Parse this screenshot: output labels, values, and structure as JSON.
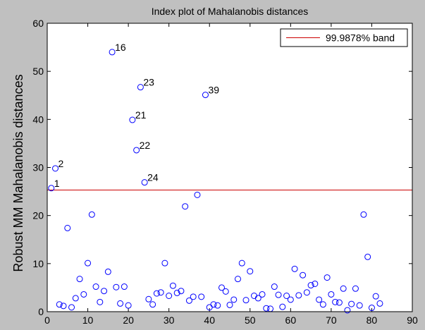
{
  "chart_data": {
    "type": "scatter",
    "title": "Index plot of Mahalanobis distances",
    "xlabel": "",
    "ylabel": "Robust MM Mahalanobis distances",
    "xlim": [
      0,
      90
    ],
    "ylim": [
      0,
      60
    ],
    "xticks": [
      0,
      10,
      20,
      30,
      40,
      50,
      60,
      70,
      80,
      90
    ],
    "yticks": [
      0,
      10,
      20,
      30,
      40,
      50,
      60
    ],
    "grid": false,
    "legend_position": "top-right",
    "colors": {
      "markers": "#0000ff",
      "band": "#cc0000",
      "background": "#c0c0c0",
      "axes": "#ffffff"
    },
    "band": {
      "label": "99.9878% band",
      "y": 25.3
    },
    "points": [
      [
        1,
        25.7
      ],
      [
        2,
        29.8
      ],
      [
        3,
        1.5
      ],
      [
        4,
        1.2
      ],
      [
        5,
        17.4
      ],
      [
        6,
        0.9
      ],
      [
        7,
        2.8
      ],
      [
        8,
        6.8
      ],
      [
        9,
        3.6
      ],
      [
        10,
        10.1
      ],
      [
        11,
        20.2
      ],
      [
        12,
        5.2
      ],
      [
        13,
        2.0
      ],
      [
        14,
        4.3
      ],
      [
        15,
        8.3
      ],
      [
        16,
        54.0
      ],
      [
        17,
        5.1
      ],
      [
        18,
        1.7
      ],
      [
        19,
        5.2
      ],
      [
        20,
        1.3
      ],
      [
        21,
        39.9
      ],
      [
        22,
        33.6
      ],
      [
        23,
        46.7
      ],
      [
        24,
        26.9
      ],
      [
        25,
        2.6
      ],
      [
        26,
        1.5
      ],
      [
        27,
        3.8
      ],
      [
        28,
        4.0
      ],
      [
        29,
        10.1
      ],
      [
        30,
        3.3
      ],
      [
        31,
        5.4
      ],
      [
        32,
        3.9
      ],
      [
        33,
        4.3
      ],
      [
        34,
        21.9
      ],
      [
        35,
        2.3
      ],
      [
        36,
        3.1
      ],
      [
        37,
        24.3
      ],
      [
        38,
        3.1
      ],
      [
        39,
        45.1
      ],
      [
        40,
        0.9
      ],
      [
        41,
        1.5
      ],
      [
        42,
        1.3
      ],
      [
        43,
        5.0
      ],
      [
        44,
        4.2
      ],
      [
        45,
        1.4
      ],
      [
        46,
        2.5
      ],
      [
        47,
        6.8
      ],
      [
        48,
        10.1
      ],
      [
        49,
        2.4
      ],
      [
        50,
        8.4
      ],
      [
        51,
        3.3
      ],
      [
        52,
        2.8
      ],
      [
        53,
        3.6
      ],
      [
        54,
        0.7
      ],
      [
        55,
        0.6
      ],
      [
        56,
        5.2
      ],
      [
        57,
        3.5
      ],
      [
        58,
        1.0
      ],
      [
        59,
        3.3
      ],
      [
        60,
        2.5
      ],
      [
        61,
        8.9
      ],
      [
        62,
        3.4
      ],
      [
        63,
        7.6
      ],
      [
        64,
        4.0
      ],
      [
        65,
        5.5
      ],
      [
        66,
        5.8
      ],
      [
        67,
        2.5
      ],
      [
        68,
        1.5
      ],
      [
        69,
        7.1
      ],
      [
        70,
        3.6
      ],
      [
        71,
        2.0
      ],
      [
        72,
        1.9
      ],
      [
        73,
        4.8
      ],
      [
        74,
        0.3
      ],
      [
        75,
        1.6
      ],
      [
        76,
        4.8
      ],
      [
        77,
        1.3
      ],
      [
        78,
        20.2
      ],
      [
        79,
        11.4
      ],
      [
        80,
        0.8
      ],
      [
        81,
        3.2
      ],
      [
        82,
        1.7
      ]
    ],
    "annotations": [
      {
        "x": 1,
        "y": 25.7,
        "text": "1"
      },
      {
        "x": 2,
        "y": 29.8,
        "text": "2"
      },
      {
        "x": 16,
        "y": 54.0,
        "text": "16"
      },
      {
        "x": 21,
        "y": 39.9,
        "text": "21"
      },
      {
        "x": 22,
        "y": 33.6,
        "text": "22"
      },
      {
        "x": 23,
        "y": 46.7,
        "text": "23"
      },
      {
        "x": 24,
        "y": 26.9,
        "text": "24"
      },
      {
        "x": 39,
        "y": 45.1,
        "text": "39"
      }
    ]
  }
}
